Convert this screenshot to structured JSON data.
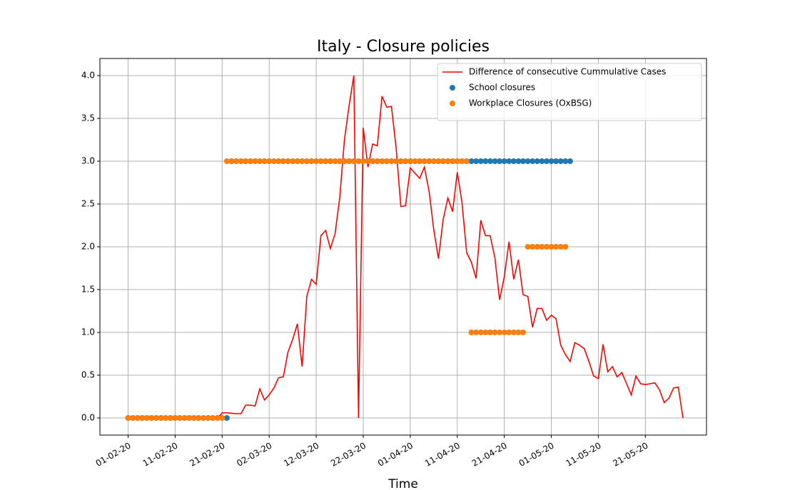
{
  "chart_data": {
    "type": "line",
    "title": "Italy - Closure policies",
    "x_label": "Time",
    "x": [
      "2020-02-01",
      "2020-02-02",
      "2020-02-03",
      "2020-02-04",
      "2020-02-05",
      "2020-02-06",
      "2020-02-07",
      "2020-02-08",
      "2020-02-09",
      "2020-02-10",
      "2020-02-11",
      "2020-02-12",
      "2020-02-13",
      "2020-02-14",
      "2020-02-15",
      "2020-02-16",
      "2020-02-17",
      "2020-02-18",
      "2020-02-19",
      "2020-02-20",
      "2020-02-21",
      "2020-02-22",
      "2020-02-23",
      "2020-02-24",
      "2020-02-25",
      "2020-02-26",
      "2020-02-27",
      "2020-02-28",
      "2020-02-29",
      "2020-03-01",
      "2020-03-02",
      "2020-03-03",
      "2020-03-04",
      "2020-03-05",
      "2020-03-06",
      "2020-03-07",
      "2020-03-08",
      "2020-03-09",
      "2020-03-10",
      "2020-03-11",
      "2020-03-12",
      "2020-03-13",
      "2020-03-14",
      "2020-03-15",
      "2020-03-16",
      "2020-03-17",
      "2020-03-18",
      "2020-03-19",
      "2020-03-20",
      "2020-03-21",
      "2020-03-22",
      "2020-03-23",
      "2020-03-24",
      "2020-03-25",
      "2020-03-26",
      "2020-03-27",
      "2020-03-28",
      "2020-03-29",
      "2020-03-30",
      "2020-03-31",
      "2020-04-01",
      "2020-04-02",
      "2020-04-03",
      "2020-04-04",
      "2020-04-05",
      "2020-04-06",
      "2020-04-07",
      "2020-04-08",
      "2020-04-09",
      "2020-04-10",
      "2020-04-11",
      "2020-04-12",
      "2020-04-13",
      "2020-04-14",
      "2020-04-15",
      "2020-04-16",
      "2020-04-17",
      "2020-04-18",
      "2020-04-19",
      "2020-04-20",
      "2020-04-21",
      "2020-04-22",
      "2020-04-23",
      "2020-04-24",
      "2020-04-25",
      "2020-04-26",
      "2020-04-27",
      "2020-04-28",
      "2020-04-29",
      "2020-04-30",
      "2020-05-01",
      "2020-05-02",
      "2020-05-03",
      "2020-05-04",
      "2020-05-05",
      "2020-05-06",
      "2020-05-07",
      "2020-05-08",
      "2020-05-09",
      "2020-05-10",
      "2020-05-11",
      "2020-05-12",
      "2020-05-13",
      "2020-05-14",
      "2020-05-15",
      "2020-05-16",
      "2020-05-17",
      "2020-05-18",
      "2020-05-19",
      "2020-05-20",
      "2020-05-21",
      "2020-05-22",
      "2020-05-23",
      "2020-05-24",
      "2020-05-25",
      "2020-05-26",
      "2020-05-27",
      "2020-05-28",
      "2020-05-29"
    ],
    "series": [
      {
        "name": "Difference of consecutive Cummulative Cases",
        "type": "line",
        "color": "#ff0000",
        "values": [
          0,
          0,
          0,
          0,
          0,
          0,
          0,
          0,
          0,
          0,
          0,
          0,
          0,
          0,
          0,
          0,
          0,
          0,
          0,
          0,
          0.06,
          0.06,
          0.055,
          0.05,
          0.05,
          0.15,
          0.15,
          0.14,
          0.34,
          0.21,
          0.27,
          0.35,
          0.47,
          0.48,
          0.77,
          0.92,
          1.1,
          0.6,
          1.42,
          1.62,
          1.56,
          2.13,
          2.19,
          1.98,
          2.15,
          2.57,
          3.25,
          3.65,
          4.0,
          0.0,
          3.39,
          2.93,
          3.2,
          3.18,
          3.76,
          3.63,
          3.64,
          3.15,
          2.47,
          2.48,
          2.92,
          2.86,
          2.8,
          2.93,
          2.65,
          2.2,
          1.86,
          2.32,
          2.57,
          2.41,
          2.87,
          2.52,
          1.93,
          1.82,
          1.63,
          2.31,
          2.13,
          2.13,
          1.87,
          1.38,
          1.65,
          2.06,
          1.62,
          1.85,
          1.44,
          1.42,
          1.06,
          1.28,
          1.28,
          1.14,
          1.2,
          1.16,
          0.85,
          0.74,
          0.66,
          0.88,
          0.85,
          0.81,
          0.66,
          0.49,
          0.46,
          0.86,
          0.54,
          0.6,
          0.48,
          0.53,
          0.4,
          0.27,
          0.49,
          0.4,
          0.39,
          0.4,
          0.41,
          0.33,
          0.18,
          0.23,
          0.35,
          0.36,
          0
        ]
      },
      {
        "name": "School closures",
        "type": "scatter",
        "color": "#1f77b4",
        "values": [
          0,
          0,
          0,
          0,
          0,
          0,
          0,
          0,
          0,
          0,
          0,
          0,
          0,
          0,
          0,
          0,
          0,
          0,
          0,
          0,
          0,
          0,
          3,
          3,
          3,
          3,
          3,
          3,
          3,
          3,
          3,
          3,
          3,
          3,
          3,
          3,
          3,
          3,
          3,
          3,
          3,
          3,
          3,
          3,
          3,
          3,
          3,
          3,
          3,
          3,
          3,
          3,
          3,
          3,
          3,
          3,
          3,
          3,
          3,
          3,
          3,
          3,
          3,
          3,
          3,
          3,
          3,
          3,
          3,
          3,
          3,
          3,
          3,
          3,
          3,
          3,
          3,
          3,
          3,
          3,
          3,
          3,
          3,
          3,
          3,
          3,
          3,
          3,
          3,
          3,
          3,
          3,
          3,
          3,
          3,
          null,
          null,
          null,
          null
        ]
      },
      {
        "name": "Workplace Closures (OxBSG)",
        "type": "scatter",
        "color": "#ff7f0e",
        "values": [
          0,
          0,
          0,
          0,
          0,
          0,
          0,
          0,
          0,
          0,
          0,
          0,
          0,
          0,
          0,
          0,
          0,
          0,
          0,
          0,
          0,
          3,
          3,
          3,
          3,
          3,
          3,
          3,
          3,
          3,
          3,
          3,
          3,
          3,
          3,
          3,
          3,
          3,
          3,
          3,
          3,
          3,
          3,
          3,
          3,
          3,
          3,
          3,
          3,
          3,
          3,
          3,
          3,
          3,
          3,
          3,
          3,
          3,
          3,
          3,
          3,
          3,
          3,
          3,
          3,
          3,
          3,
          3,
          3,
          3,
          3,
          3,
          3,
          1,
          1,
          1,
          1,
          1,
          1,
          1,
          1,
          1,
          1,
          1,
          1,
          2,
          2,
          2,
          2,
          2,
          2,
          2,
          2,
          2,
          null,
          null,
          null,
          null,
          null
        ]
      }
    ],
    "xlim": [
      "2020-01-26",
      "2020-06-03"
    ],
    "xticks": [
      {
        "value": "2020-02-01",
        "label": "01-02-20"
      },
      {
        "value": "2020-02-11",
        "label": "11-02-20"
      },
      {
        "value": "2020-02-21",
        "label": "21-02-20"
      },
      {
        "value": "2020-03-02",
        "label": "02-03-20"
      },
      {
        "value": "2020-03-12",
        "label": "12-03-20"
      },
      {
        "value": "2020-03-22",
        "label": "22-03-20"
      },
      {
        "value": "2020-04-01",
        "label": "01-04-20"
      },
      {
        "value": "2020-04-11",
        "label": "11-04-20"
      },
      {
        "value": "2020-04-21",
        "label": "21-04-20"
      },
      {
        "value": "2020-05-01",
        "label": "01-05-20"
      },
      {
        "value": "2020-05-11",
        "label": "11-05-20"
      },
      {
        "value": "2020-05-21",
        "label": "21-05-20"
      }
    ],
    "ylim": [
      -0.2,
      4.2
    ],
    "yticks": [
      {
        "value": 0,
        "label": "0.0"
      },
      0.5,
      {
        "value": 1,
        "label": "1.0"
      },
      1.5,
      {
        "value": 2,
        "label": "2.0"
      },
      2.5,
      {
        "value": 3,
        "label": "3.0"
      },
      3.5,
      {
        "value": 4,
        "label": "4.0"
      }
    ],
    "grid": true,
    "legend": "upper right"
  }
}
